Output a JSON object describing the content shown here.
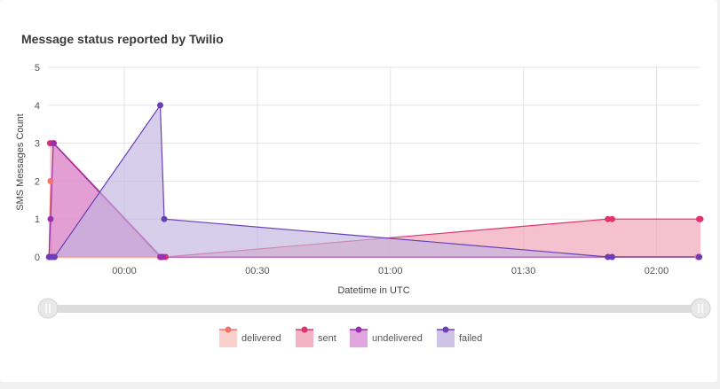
{
  "chart_data": {
    "type": "area",
    "title": "Message status reported by Twilio",
    "xlabel": "Datetime in UTC",
    "ylabel": "SMS Messages Count",
    "ylim": [
      0,
      5
    ],
    "yticks": [
      "0",
      "1",
      "2",
      "3",
      "4",
      "5"
    ],
    "xlim": [
      -0.287,
      2.165
    ],
    "xticks": [
      {
        "label": "00:00",
        "value": 0
      },
      {
        "label": "00:30",
        "value": 0.5
      },
      {
        "label": "01:00",
        "value": 1
      },
      {
        "label": "01:30",
        "value": 1.5
      },
      {
        "label": "02:00",
        "value": 2
      }
    ],
    "legend_position": "bottom-center",
    "series": [
      {
        "name": "delivered",
        "color": "#f4736b",
        "fill": "#f9c4c0",
        "points": [
          [
            -0.283,
            0
          ],
          [
            -0.277,
            2
          ],
          [
            -0.273,
            0
          ],
          [
            2.155,
            0
          ]
        ]
      },
      {
        "name": "sent",
        "color": "#e0336d",
        "fill": "#f0a0b6",
        "points": [
          [
            -0.279,
            3
          ],
          [
            -0.265,
            3
          ],
          [
            0.14,
            0
          ],
          [
            0.155,
            0
          ],
          [
            1.817,
            1
          ],
          [
            1.833,
            1
          ],
          [
            2.16,
            1
          ],
          [
            2.165,
            1
          ]
        ]
      },
      {
        "name": "undelivered",
        "color": "#9b2fae",
        "fill": "#d98ed6",
        "points": [
          [
            -0.283,
            0
          ],
          [
            -0.277,
            1
          ],
          [
            -0.267,
            3
          ],
          [
            0.135,
            0
          ],
          [
            0.145,
            0
          ],
          [
            2.16,
            0
          ]
        ]
      },
      {
        "name": "failed",
        "color": "#6a3fb5",
        "fill": "#c2b4e0",
        "points": [
          [
            -0.281,
            0
          ],
          [
            -0.27,
            0
          ],
          [
            -0.262,
            0
          ],
          [
            0.135,
            4
          ],
          [
            0.15,
            1
          ],
          [
            1.817,
            0
          ],
          [
            1.833,
            0
          ],
          [
            2.16,
            0
          ]
        ]
      }
    ]
  }
}
